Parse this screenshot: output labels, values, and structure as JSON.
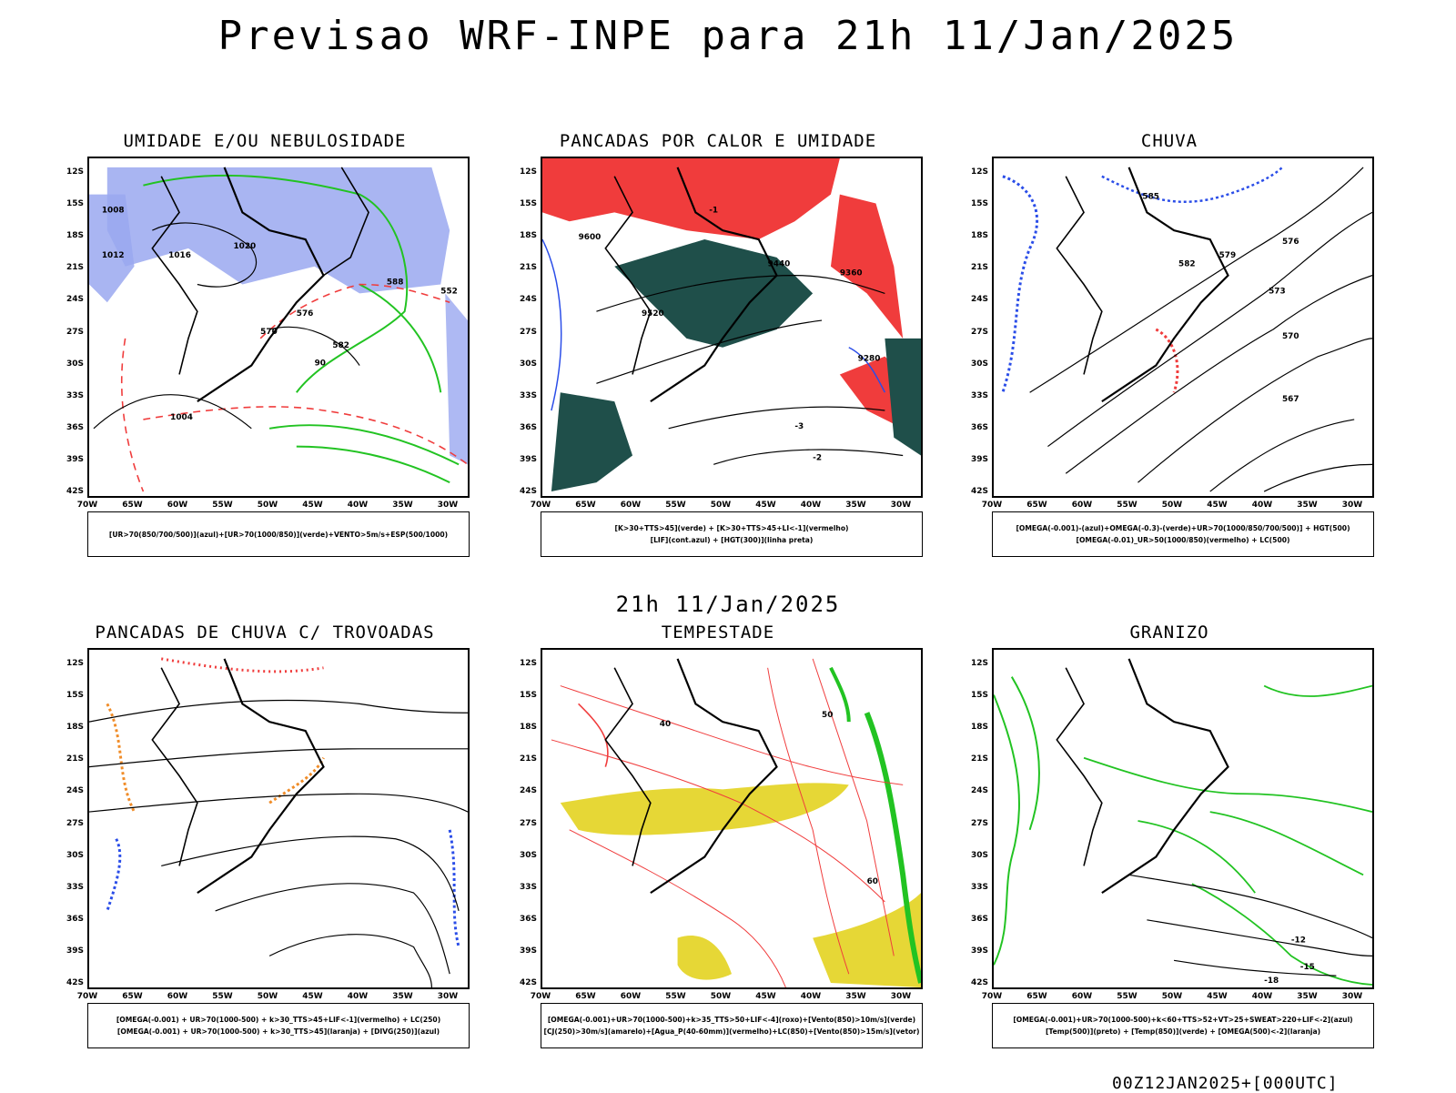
{
  "title": "Previsao WRF-INPE  para 21h 11/Jan/2025",
  "mid_date": "21h 11/Jan/2025",
  "footer": "00Z12JAN2025+[000UTC]",
  "axes": {
    "lat_labels": [
      "12S",
      "15S",
      "18S",
      "21S",
      "24S",
      "27S",
      "30S",
      "33S",
      "36S",
      "39S",
      "42S"
    ],
    "lon_labels": [
      "70W",
      "65W",
      "60W",
      "55W",
      "50W",
      "45W",
      "40W",
      "35W",
      "30W"
    ]
  },
  "colors": {
    "blue_fill": "#9aa8f0",
    "green_line": "#22c322",
    "red": "#f03c3c",
    "dark_teal": "#1f4f4a",
    "yellow": "#e6d736",
    "orange": "#f08c28",
    "blue": "#2a4de8"
  },
  "panels": [
    {
      "title": "UMIDADE E/OU NEBULOSIDADE",
      "legend": [
        "[UR>70(850/700/500)](azul)+[UR>70(1000/850)](verde)+VENTO>5m/s+ESP(500/1000)"
      ],
      "labels": [
        "1008",
        "1012",
        "1016",
        "1020",
        "570",
        "576",
        "582",
        "588",
        "552",
        "90",
        "1004"
      ]
    },
    {
      "title": "PANCADAS POR CALOR E UMIDADE",
      "legend": [
        "[K>30+TTS>45](verde) + [K>30+TTS>45+LI<-1](vermelho)",
        "[LIF](cont.azul) + [HGT(300)](linha preta)"
      ],
      "labels": [
        "9600",
        "9520",
        "9440",
        "9360",
        "9280",
        "-3",
        "-2",
        "-1"
      ]
    },
    {
      "title": "CHUVA",
      "legend": [
        "[OMEGA(-0.001)-(azul)+OMEGA(-0.3)-(verde)+UR>70(1000/850/700/500)] + HGT(500)",
        "[OMEGA(-0.01)_UR>50(1000/850)(vermelho) + LC(500)"
      ],
      "labels": [
        "585",
        "582",
        "579",
        "576",
        "573",
        "570",
        "567"
      ]
    },
    {
      "title": "PANCADAS DE CHUVA C/ TROVOADAS",
      "legend": [
        "[OMEGA(-0.001) + UR>70(1000-500) + k>30_TTS>45+LIF<-1](vermelho) + LC(250)",
        "[OMEGA(-0.001) + UR>70(1000-500) + k>30_TTS>45](laranja) + [DIVG(250)](azul)"
      ],
      "labels": []
    },
    {
      "title": "TEMPESTADE",
      "legend": [
        "[OMEGA(-0.001)+UR>70(1000-500)+k>35_TTS>50+LIF<-4](roxo)+[Vento(850)>10m/s](verde)",
        "[CJ(250)>30m/s](amarelo)+[Agua_P(40-60mm)](vermelho)+LC(850)+[Vento(850)>15m/s](vetor)"
      ],
      "labels": [
        "50",
        "40",
        "60"
      ]
    },
    {
      "title": "GRANIZO",
      "legend": [
        "[OMEGA(-0.001)+UR>70(1000-500)+k<60+TTS>52+VT>25+SWEAT>220+LIF<-2](azul)",
        "[Temp(500)](preto) + [Temp(850)](verde) + [OMEGA(500)<-2](laranja)"
      ],
      "labels": [
        "-12",
        "-15",
        "-18"
      ]
    }
  ]
}
